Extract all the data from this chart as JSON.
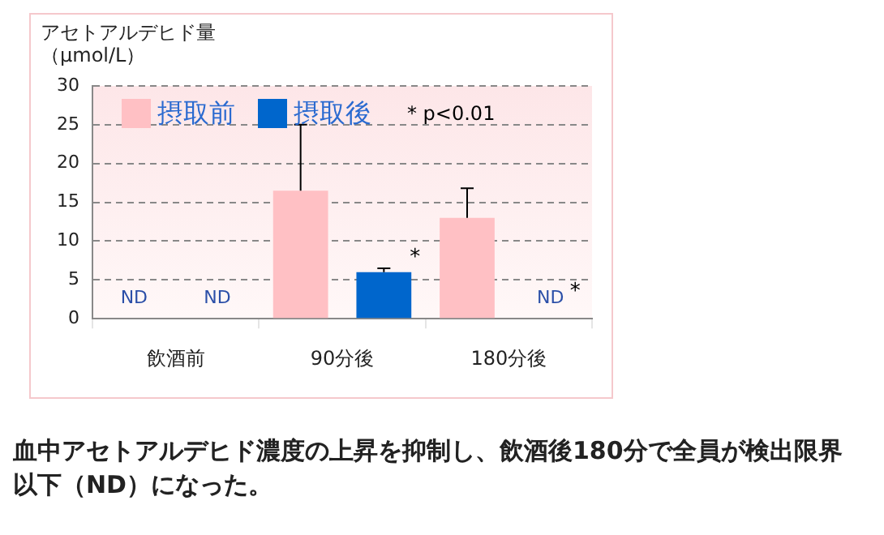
{
  "chart_data": {
    "type": "bar",
    "ylabel": "アセトアルデヒド量（μmol/L）",
    "categories": [
      "飲酒前",
      "90分後",
      "180分後"
    ],
    "series": [
      {
        "name": "摂取前",
        "color": "#ffc0c4",
        "values": [
          null,
          16.5,
          13
        ],
        "errors": [
          null,
          [
            16.5,
            25
          ],
          [
            13,
            16.8
          ]
        ],
        "value_labels": [
          "ND",
          null,
          null
        ]
      },
      {
        "name": "摂取後",
        "color": "#0066cc",
        "values": [
          null,
          6,
          null
        ],
        "errors": [
          null,
          [
            6,
            6.5
          ],
          null
        ],
        "value_labels": [
          "ND",
          null,
          "ND"
        ]
      }
    ],
    "ylim": [
      0,
      30
    ],
    "yticks": [
      0,
      5,
      10,
      15,
      20,
      25,
      30
    ],
    "grid": "y",
    "legend": "top left",
    "annotations": [
      "*",
      "*",
      "* p<0.01",
      "血中アセトアルデヒド濃度の上昇を抑制し、飲酒後180分で全員が検出限界以下（ND）になった。"
    ]
  }
}
